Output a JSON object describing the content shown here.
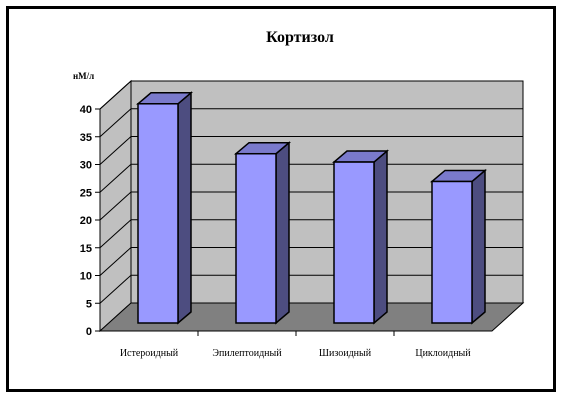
{
  "chart_data": {
    "type": "bar",
    "title": "Кортизол",
    "ylabel": "нМ/л",
    "xlabel": "",
    "categories": [
      "Истероидный",
      "Эпилептоидный",
      "Шизоидный",
      "Циклоидный"
    ],
    "values": [
      39.5,
      30.5,
      29,
      25.5
    ],
    "ylim": [
      0,
      40
    ],
    "yticks": [
      0,
      5,
      10,
      15,
      20,
      25,
      30,
      35,
      40
    ],
    "grid": true,
    "legend": "none",
    "colors": {
      "bar_front": "#9999ff",
      "bar_side": "#4d4d80",
      "bar_top": "#7a7acc",
      "wall": "#c0c0c0",
      "floor": "#808080"
    }
  }
}
